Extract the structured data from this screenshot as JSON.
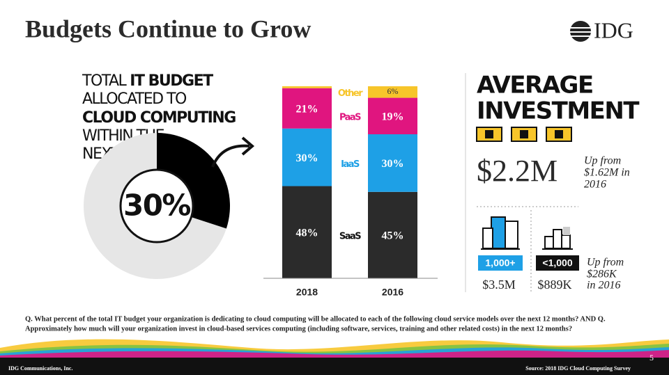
{
  "title": "Budgets Continue to Grow",
  "logo": "IDG",
  "chart_data": [
    {
      "type": "pie",
      "title_lines": [
        "TOTAL",
        "IT BUDGET",
        "ALLOCATED TO",
        "CLOUD COMPUTING",
        "WITHIN THE",
        "NEXT YEAR"
      ],
      "values": [
        30,
        70
      ],
      "value_labels": [
        "30%",
        null
      ],
      "colors": [
        "#000000",
        "#e6e6e6"
      ]
    },
    {
      "type": "stacked_bar",
      "categories": [
        "2018",
        "2016"
      ],
      "ylim": [
        0,
        100
      ],
      "series": [
        {
          "name": "SaaS",
          "color": "#2b2b2b",
          "values": [
            48,
            45
          ],
          "value_labels": [
            "48%",
            "45%"
          ]
        },
        {
          "name": "IaaS",
          "color": "#1ea0e6",
          "values": [
            30,
            30
          ],
          "value_labels": [
            "30%",
            "30%"
          ]
        },
        {
          "name": "PaaS",
          "color": "#e0157f",
          "values": [
            21,
            19
          ],
          "value_labels": [
            "21%",
            "19%"
          ]
        },
        {
          "name": "Other",
          "color": "#f7c52a",
          "values": [
            1,
            6
          ],
          "value_labels": [
            null,
            "6%"
          ]
        }
      ]
    }
  ],
  "investment": {
    "title_lines": [
      "AVERAGE",
      "INVESTMENT"
    ],
    "overall": "$2.2M",
    "overall_note_lines": [
      "Up from",
      "$1.62M in",
      "2016"
    ],
    "large": {
      "label": "1,000+",
      "value": "$3.5M"
    },
    "small": {
      "label": "<1,000",
      "value": "$889K"
    },
    "small_note_lines": [
      "Up from",
      "$286K",
      "in 2016"
    ]
  },
  "question_lines": [
    "Q. What percent of the total IT budget your organization is dedicating to cloud computing will be allocated to each of the following cloud service models over the next 12 months? AND Q.",
    "Approximately how much will your organization invest in cloud-based services computing (including software, services, training and other related costs) in the next 12 months?"
  ],
  "footer": {
    "company": "IDG Communications, Inc.",
    "source": "Source: 2018 IDG Cloud Computing Survey",
    "page": "5"
  }
}
